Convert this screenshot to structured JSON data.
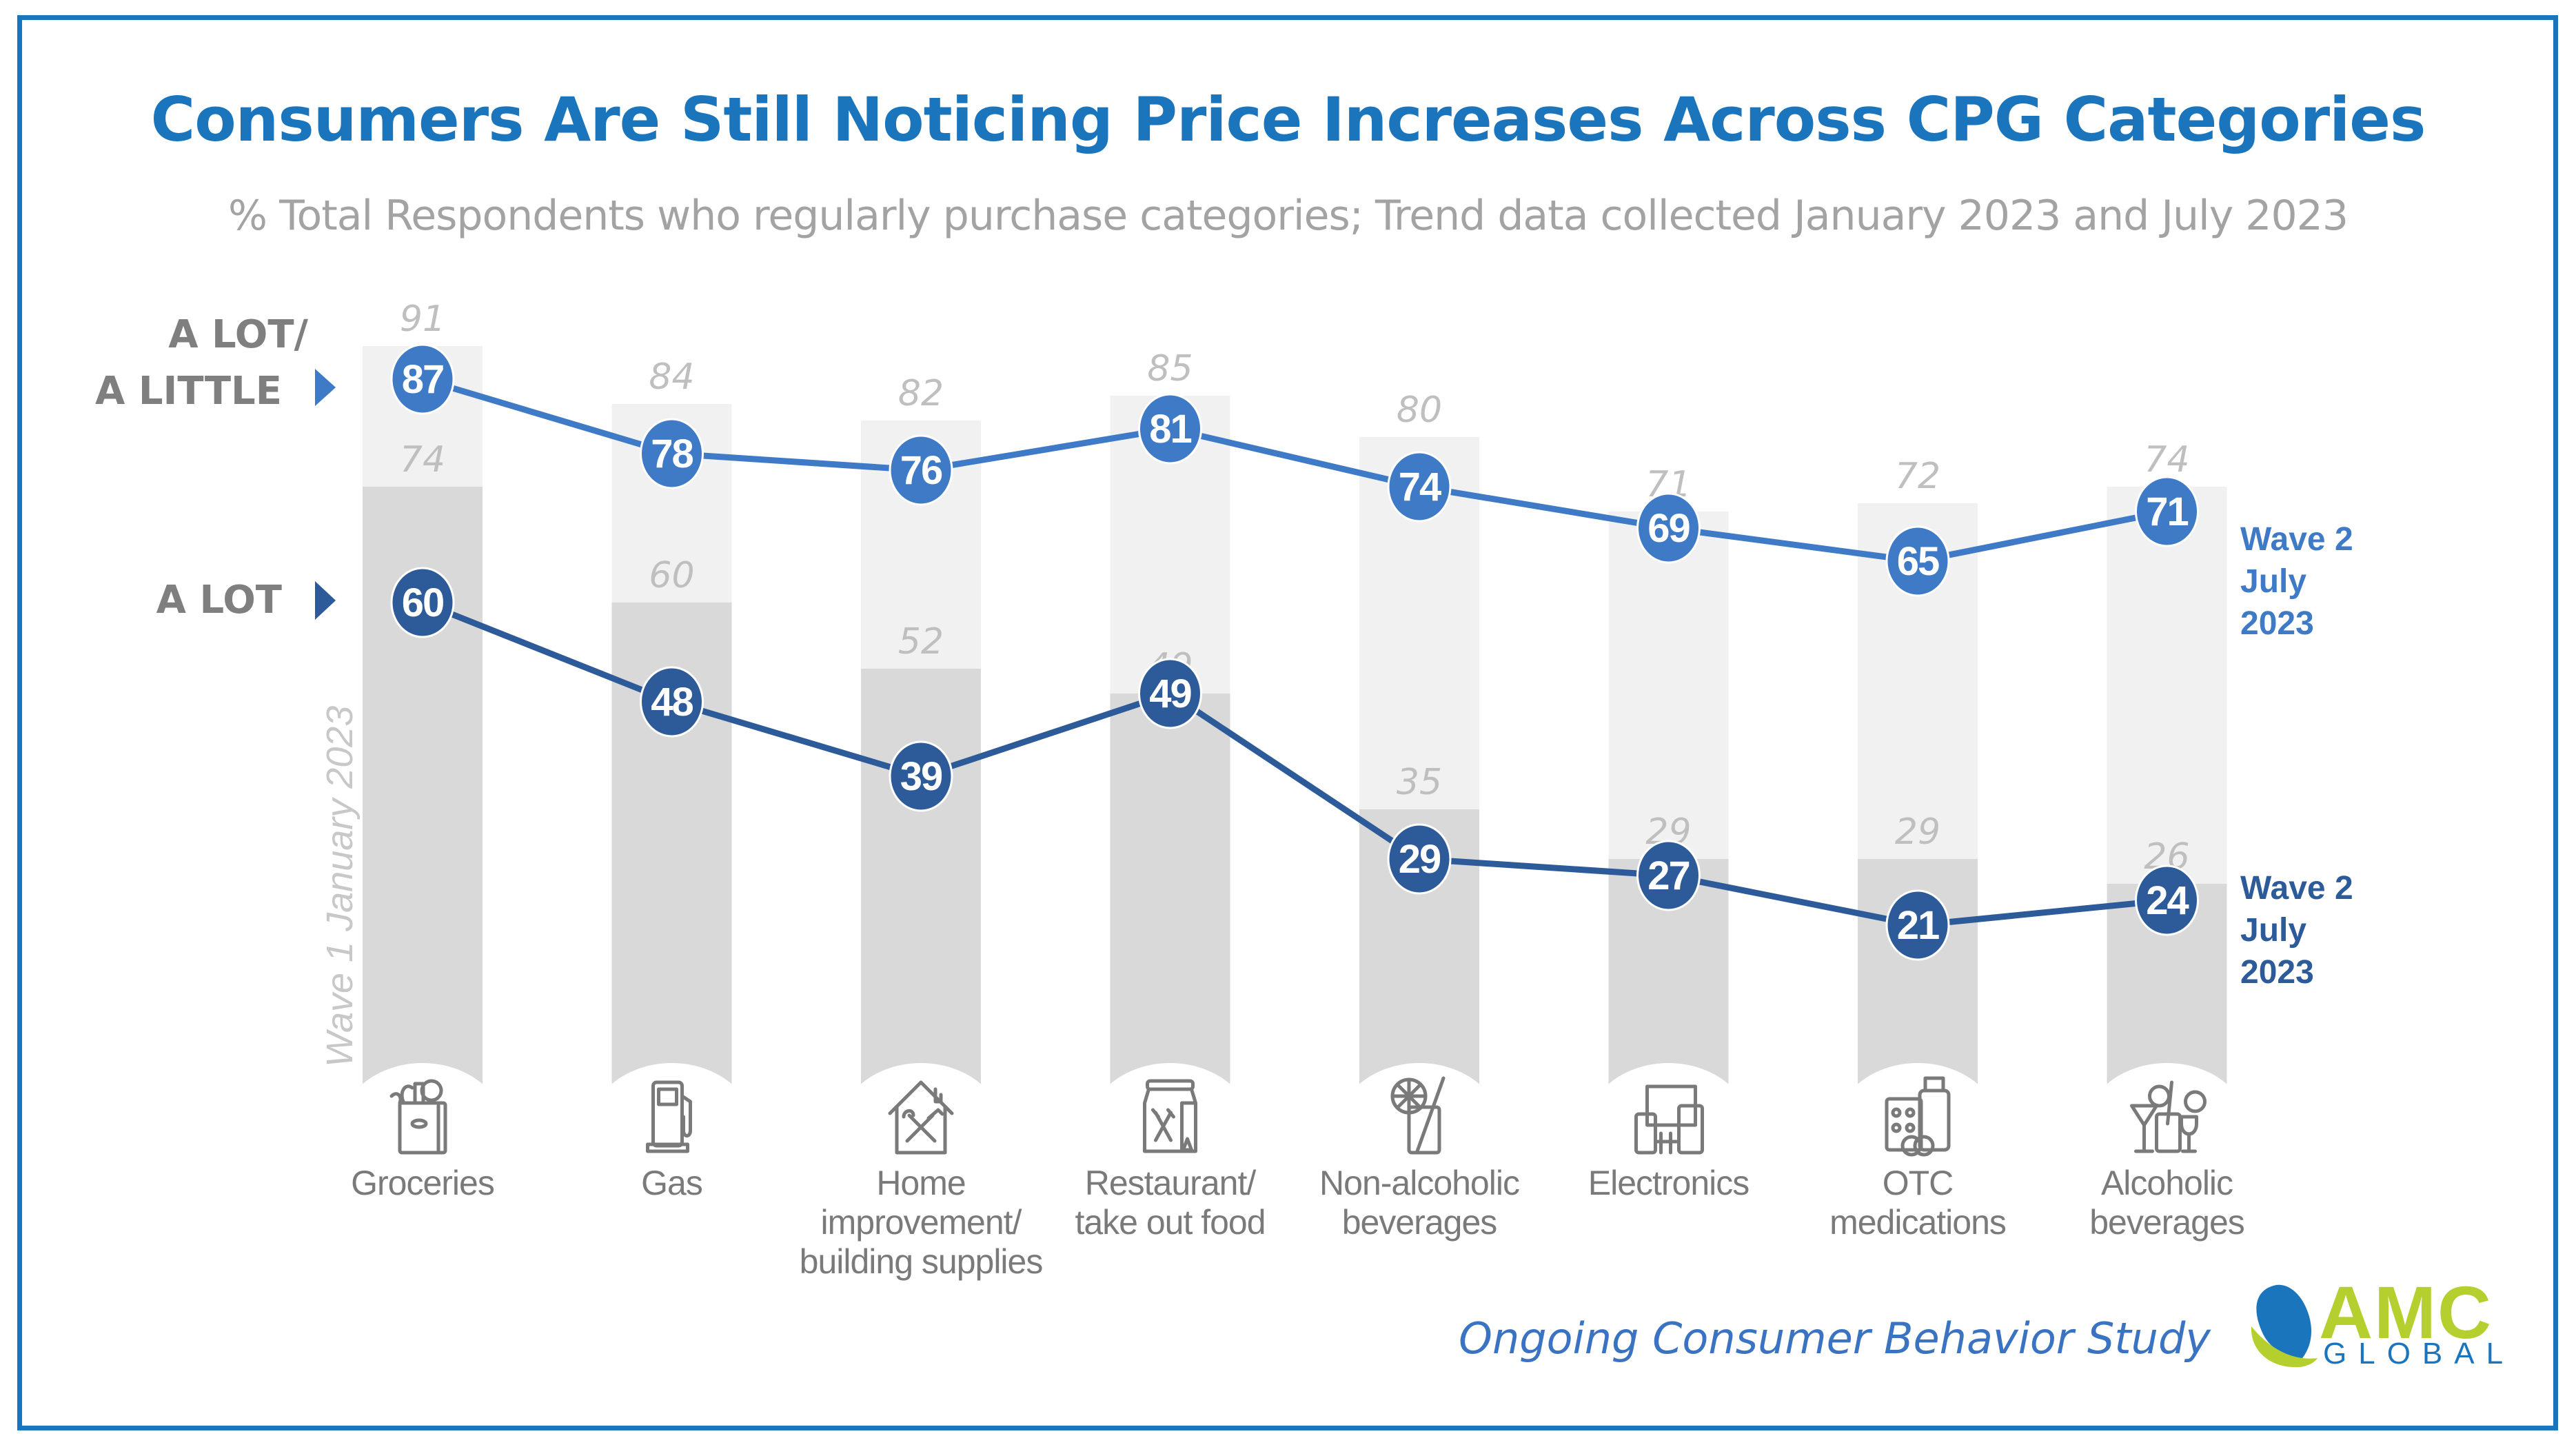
{
  "header": {
    "title": "Consumers Are Still Noticing Price Increases Across CPG Categories",
    "subtitle": "% Total Respondents who regularly purchase categories; Trend data collected January 2023 and July 2023"
  },
  "row_labels": {
    "a_lot_a_little_line1": "A LOT/",
    "a_lot_a_little_line2": "A LITTLE",
    "a_lot": "A LOT"
  },
  "wave_labels": {
    "wave1": "Wave 1 January 2023",
    "wave2_upper": "Wave 2\nJuly\n2023",
    "wave2_lower": "Wave 2\nJuly\n2023"
  },
  "footer": {
    "study_name": "Ongoing Consumer Behavior Study",
    "logo_top": "AMC",
    "logo_bottom": "GLOBAL"
  },
  "colors": {
    "title": "#1B75BC",
    "frame": "#1B75BC",
    "wave2_a_lot_a_little": "#3F7AC7",
    "wave2_a_lot": "#2D5B9A",
    "wave1_a_lot_a_little_bar": "#F1F1F1",
    "wave1_a_lot_bar": "#D9D9D9",
    "wave1_value_text": "#BFBFBF",
    "logo_green": "#B5CF2F",
    "logo_blue": "#1B75BC"
  },
  "categories": [
    {
      "label": "Groceries",
      "icon": "grocery-bag-icon"
    },
    {
      "label": "Gas",
      "icon": "gas-pump-icon"
    },
    {
      "label": "Home\nimprovement/\nbuilding supplies",
      "icon": "home-tools-icon"
    },
    {
      "label": "Restaurant/\ntake out food",
      "icon": "takeout-bag-icon"
    },
    {
      "label": "Non-alcoholic\nbeverages",
      "icon": "lemonade-glass-icon"
    },
    {
      "label": "Electronics",
      "icon": "devices-icon"
    },
    {
      "label": "OTC\nmedications",
      "icon": "medicine-icon"
    },
    {
      "label": "Alcoholic\nbeverages",
      "icon": "cocktail-icon"
    }
  ],
  "chart_data": {
    "type": "bar",
    "title": "Consumers Are Still Noticing Price Increases Across CPG Categories",
    "subtitle": "% Total Respondents who regularly purchase categories; Trend data collected January 2023 and July 2023",
    "xlabel": "",
    "ylabel": "",
    "ylim": [
      0,
      100
    ],
    "grid": false,
    "categories": [
      "Groceries",
      "Gas",
      "Home improvement/ building supplies",
      "Restaurant/ take out food",
      "Non-alcoholic beverages",
      "Electronics",
      "OTC medications",
      "Alcoholic beverages"
    ],
    "series": [
      {
        "name": "Wave 1 January 2023 - A lot/A little",
        "kind": "bar",
        "values": [
          91,
          84,
          82,
          85,
          80,
          71,
          72,
          74
        ]
      },
      {
        "name": "Wave 1 January 2023 - A lot",
        "kind": "bar",
        "values": [
          74,
          60,
          52,
          49,
          35,
          29,
          29,
          26
        ]
      },
      {
        "name": "Wave 2 July 2023 - A lot/A little",
        "kind": "line",
        "values": [
          87,
          78,
          76,
          81,
          74,
          69,
          65,
          71
        ]
      },
      {
        "name": "Wave 2 July 2023 - A lot",
        "kind": "line",
        "values": [
          60,
          48,
          39,
          49,
          29,
          27,
          21,
          24
        ]
      }
    ],
    "legend": "right"
  }
}
